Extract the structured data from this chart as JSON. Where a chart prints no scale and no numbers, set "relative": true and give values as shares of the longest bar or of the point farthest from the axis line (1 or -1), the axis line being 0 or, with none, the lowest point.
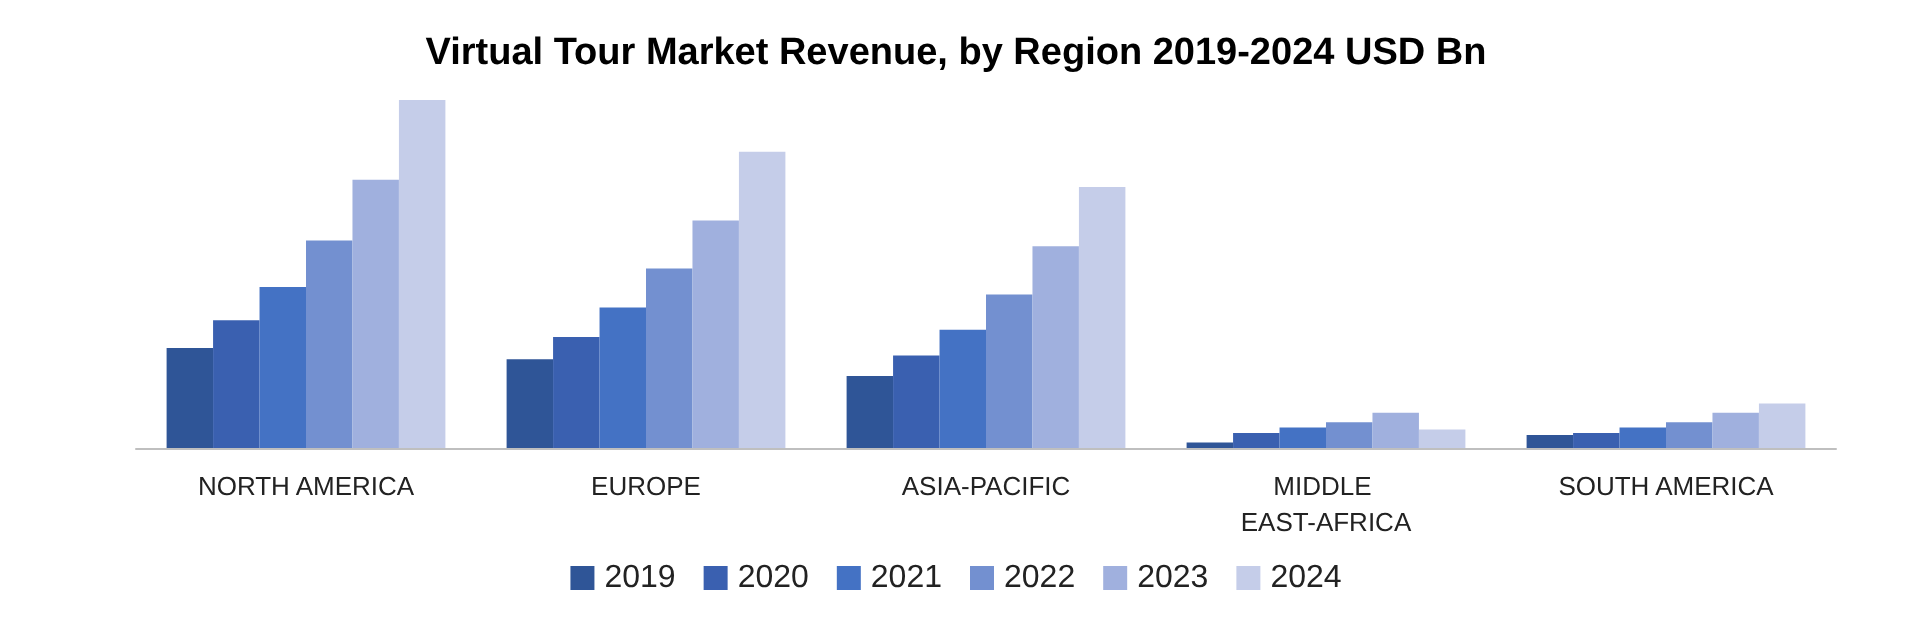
{
  "chart_data": {
    "type": "bar",
    "title": "Virtual Tour Market Revenue, by Region 2019-2024 USD Bn",
    "relative": true,
    "categories": [
      "NORTH AMERICA",
      "EUROPE",
      "ASIA-PACIFIC",
      "MIDDLE EAST-AFRICA",
      "SOUTH AMERICA"
    ],
    "series": [
      {
        "name": "2019",
        "color": "#2f5597",
        "values": [
          0.287,
          0.255,
          0.207,
          0.016,
          0.037
        ]
      },
      {
        "name": "2020",
        "color": "#3a60b0",
        "values": [
          0.367,
          0.319,
          0.266,
          0.043,
          0.043
        ]
      },
      {
        "name": "2021",
        "color": "#4472c4",
        "values": [
          0.463,
          0.404,
          0.34,
          0.059,
          0.059
        ]
      },
      {
        "name": "2022",
        "color": "#7390d0",
        "values": [
          0.596,
          0.516,
          0.441,
          0.074,
          0.074
        ]
      },
      {
        "name": "2023",
        "color": "#a0b0de",
        "values": [
          0.771,
          0.654,
          0.58,
          0.101,
          0.101
        ]
      },
      {
        "name": "2024",
        "color": "#c5cde9",
        "values": [
          1,
          0.851,
          0.75,
          0.053,
          0.128
        ]
      }
    ],
    "legend": "bottom",
    "grid": false
  }
}
